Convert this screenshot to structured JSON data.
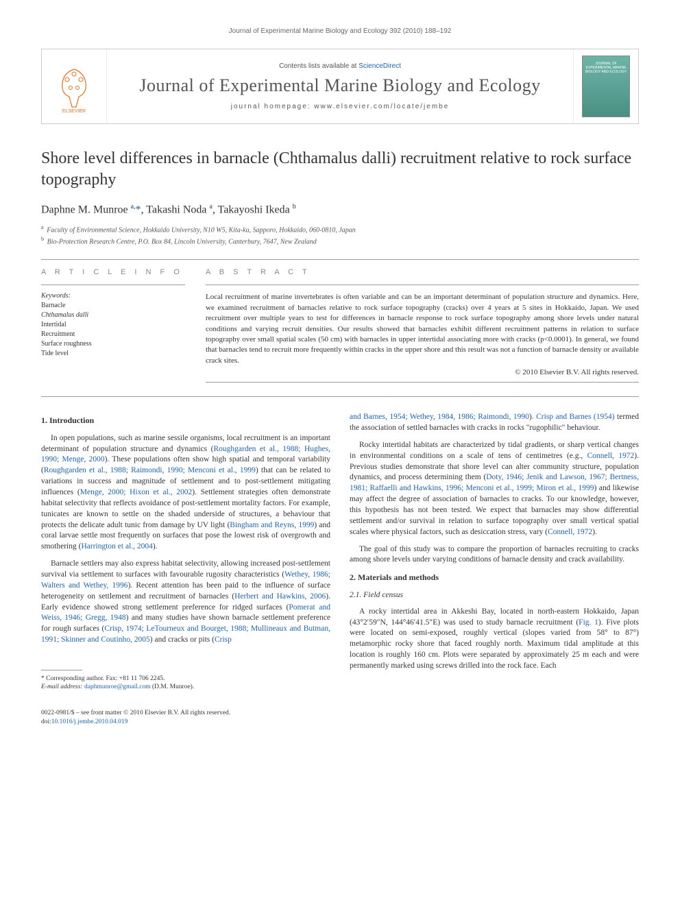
{
  "running_header": "Journal of Experimental Marine Biology and Ecology 392 (2010) 188–192",
  "banner": {
    "contents_prefix": "Contents lists available at ",
    "contents_link": "ScienceDirect",
    "journal_title": "Journal of Experimental Marine Biology and Ecology",
    "homepage_label": "journal homepage: www.elsevier.com/locate/jembe",
    "cover_text": "JOURNAL OF EXPERIMENTAL MARINE BIOLOGY AND ECOLOGY"
  },
  "title": "Shore level differences in barnacle (Chthamalus dalli) recruitment relative to rock surface topography",
  "authors_html": "Daphne M. Munroe <sup>a,</sup><a href=\"#\">*</a>, Takashi Noda <sup>a</sup>, Takayoshi Ikeda <sup>b</sup>",
  "affiliations": [
    {
      "sup": "a",
      "text": "Faculty of Environmental Science, Hokkaido University, N10 W5, Kita-ku, Sapporo, Hokkaido, 060-0810, Japan"
    },
    {
      "sup": "b",
      "text": "Bio-Protection Research Centre, P.O. Box 84, Lincoln University, Canterbury, 7647, New Zealand"
    }
  ],
  "article_info_heading": "A R T I C L E   I N F O",
  "abstract_heading": "A B S T R A C T",
  "keywords_label": "Keywords:",
  "keywords": [
    "Barnacle",
    "Chthamalus dalli",
    "Intertidal",
    "Recruitment",
    "Surface roughness",
    "Tide level"
  ],
  "abstract": "Local recruitment of marine invertebrates is often variable and can be an important determinant of population structure and dynamics. Here, we examined recruitment of barnacles relative to rock surface topography (cracks) over 4 years at 5 sites in Hokkaido, Japan. We used recruitment over multiple years to test for differences in barnacle response to rock surface topography among shore levels under natural conditions and varying recruit densities. Our results showed that barnacles exhibit different recruitment patterns in relation to surface topography over small spatial scales (50 cm) with barnacles in upper intertidal associating more with cracks (p<0.0001). In general, we found that barnacles tend to recruit more frequently within cracks in the upper shore and this result was not a function of barnacle density or available crack sites.",
  "abstract_copyright": "© 2010 Elsevier B.V. All rights reserved.",
  "sections": {
    "intro_heading": "1. Introduction",
    "methods_heading": "2. Materials and methods",
    "field_census_heading": "2.1. Field census"
  },
  "body": {
    "p1_a": "In open populations, such as marine sessile organisms, local recruitment is an important determinant of population structure and dynamics (",
    "p1_c1": "Roughgarden et al., 1988; Hughes, 1990; Menge, 2000",
    "p1_b": "). These populations often show high spatial and temporal variability (",
    "p1_c2": "Roughgarden et al., 1988; Raimondi, 1990; Menconi et al., 1999",
    "p1_c": ") that can be related to variations in success and magnitude of settlement and to post-settlement mitigating influences (",
    "p1_c3": "Menge, 2000; Hixon et al., 2002",
    "p1_d": "). Settlement strategies often demonstrate habitat selectivity that reflects avoidance of post-settlement mortality factors. For example, tunicates are known to settle on the shaded underside of structures, a behaviour that protects the delicate adult tunic from damage by UV light (",
    "p1_c4": "Bingham and Reyns, 1999",
    "p1_e": ") and coral larvae settle most frequently on surfaces that pose the lowest risk of overgrowth and smothering (",
    "p1_c5": "Harrington et al., 2004",
    "p1_f": ").",
    "p2_a": "Barnacle settlers may also express habitat selectivity, allowing increased post-settlement survival via settlement to surfaces with favourable rugosity characteristics (",
    "p2_c1": "Wethey, 1986; Walters and Wethey, 1996",
    "p2_b": "). Recent attention has been paid to the influence of surface heterogeneity on settlement and recruitment of barnacles (",
    "p2_c2": "Herbert and Hawkins, 2006",
    "p2_c": "). Early evidence showed strong settlement preference for ridged surfaces (",
    "p2_c3": "Pomerat and Weiss, 1946; Gregg, 1948",
    "p2_d": ") and many studies have shown barnacle settlement preference for rough surfaces (",
    "p2_c4": "Crisp, 1974; LeTourneux and Bourget, 1988; Mullineaux and Butman, 1991; Skinner and Coutinho, 2005",
    "p2_e": ") and cracks or pits (",
    "p2_c5": "Crisp",
    "p3_c1": "and Barnes, 1954; Wethey, 1984, 1986; Raimondi, 1990",
    "p3_a": "). ",
    "p3_c2": "Crisp and Barnes (1954)",
    "p3_b": " termed the association of settled barnacles with cracks in rocks \"rugophilic\" behaviour.",
    "p4_a": "Rocky intertidal habitats are characterized by tidal gradients, or sharp vertical changes in environmental conditions on a scale of tens of centimetres (e.g., ",
    "p4_c1": "Connell, 1972",
    "p4_b": "). Previous studies demonstrate that shore level can alter community structure, population dynamics, and process determining them (",
    "p4_c2": "Doty, 1946; Jenik and Lawson, 1967; Bertness, 1981; Raffaelli and Hawkins, 1996; Menconi et al., 1999; Miron et al., 1999",
    "p4_c": ") and likewise may affect the degree of association of barnacles to cracks. To our knowledge, however, this hypothesis has not been tested. We expect that barnacles may show differential settlement and/or survival in relation to surface topography over small vertical spatial scales where physical factors, such as desiccation stress, vary (",
    "p4_c3": "Connell, 1972",
    "p4_d": ").",
    "p5": "The goal of this study was to compare the proportion of barnacles recruiting to cracks among shore levels under varying conditions of barnacle density and crack availability.",
    "p6_a": "A rocky intertidal area in Akkeshi Bay, located in north-eastern Hokkaido, Japan (43°2′59″N, 144°46′41.5″E) was used to study barnacle recruitment (",
    "p6_c1": "Fig. 1",
    "p6_b": "). Five plots were located on semi-exposed, roughly vertical (slopes varied from 58° to 87°) metamorphic rocky shore that faced roughly north. Maximum tidal amplitude at this location is roughly 160 cm. Plots were separated by approximately 25 m each and were permanently marked using screws drilled into the rock face. Each"
  },
  "footnote": {
    "corr": "* Corresponding author. Fax: +81 11 706 2245.",
    "email_label": "E-mail address: ",
    "email": "daphmunroe@gmail.com",
    "email_suffix": " (D.M. Munroe)."
  },
  "footer": {
    "line1": "0022-0981/$ – see front matter © 2010 Elsevier B.V. All rights reserved.",
    "doi_label": "doi:",
    "doi": "10.1016/j.jembe.2010.04.019"
  },
  "colors": {
    "link": "#1c63b7",
    "text": "#333333",
    "muted": "#666666",
    "rule": "#999999"
  }
}
